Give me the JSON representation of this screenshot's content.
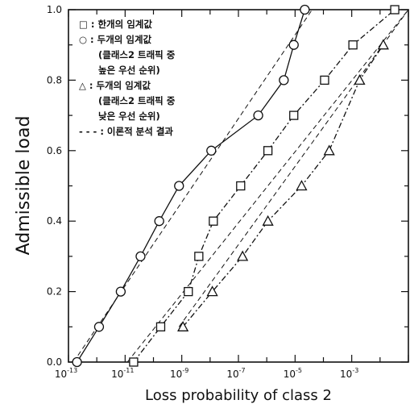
{
  "chart_data": {
    "type": "line",
    "title": "",
    "xlabel": "Loss probability of class 2",
    "ylabel": "Admissible load",
    "x_scale": "log",
    "xlim": [
      1e-13,
      0.1
    ],
    "ylim": [
      0.0,
      1.0
    ],
    "grid": false,
    "legend_placement": "top-left",
    "x_ticks": [
      {
        "value": 1e-13,
        "base": "10",
        "exp": "-13"
      },
      {
        "value": 1e-11,
        "base": "10",
        "exp": "-11"
      },
      {
        "value": 1e-09,
        "base": "10",
        "exp": "-9"
      },
      {
        "value": 1e-07,
        "base": "10",
        "exp": "-7"
      },
      {
        "value": 1e-05,
        "base": "10",
        "exp": "-5"
      },
      {
        "value": 0.001,
        "base": "10",
        "exp": "-3"
      }
    ],
    "y_ticks": [
      {
        "value": 0.0,
        "label": "0.0"
      },
      {
        "value": 0.2,
        "label": "0.2"
      },
      {
        "value": 0.4,
        "label": "0.4"
      },
      {
        "value": 0.6,
        "label": "0.6"
      },
      {
        "value": 0.8,
        "label": "0.8"
      },
      {
        "value": 1.0,
        "label": "1.0"
      }
    ],
    "series": [
      {
        "name": "한개의 임계값",
        "marker": "square",
        "line": "dash-dot",
        "x": [
          2e-11,
          1.8e-10,
          1.7e-09,
          4e-09,
          1.3e-08,
          1.2e-07,
          1.1e-06,
          9e-06,
          0.00011,
          0.0011,
          0.033
        ],
        "y": [
          0.0,
          0.1,
          0.2,
          0.3,
          0.4,
          0.5,
          0.6,
          0.7,
          0.8,
          0.9,
          1.0
        ]
      },
      {
        "name": "두개의 임계값 (클래스2 트래픽 중 높은 우선 순위)",
        "marker": "circle",
        "line": "solid",
        "x": [
          2e-13,
          1.2e-12,
          7e-12,
          3.5e-11,
          1.6e-10,
          8e-10,
          1.1e-08,
          5e-07,
          4e-06,
          9e-06,
          2.2e-05
        ],
        "y": [
          0.0,
          0.1,
          0.2,
          0.3,
          0.4,
          0.5,
          0.6,
          0.7,
          0.8,
          0.9,
          1.0
        ]
      },
      {
        "name": "두개의 임계값 (클래스2 트래픽 중 낮은 우선 순위)",
        "marker": "triangle",
        "line": "dash-dot",
        "x": [
          1.1e-09,
          1.2e-08,
          1.4e-07,
          1.1e-06,
          1.7e-05,
          0.00016,
          0.0019,
          0.013
        ],
        "y": [
          0.1,
          0.2,
          0.3,
          0.4,
          0.5,
          0.6,
          0.8,
          0.9
        ]
      },
      {
        "name": "이론적 분석 결과",
        "marker": "none",
        "line": "dashed",
        "x": [
          1.5e-13,
          4e-05
        ],
        "y": [
          0.0,
          1.0
        ]
      },
      {
        "name": "이론적 분석 결과",
        "marker": "none",
        "line": "dashed",
        "x": [
          1.2e-11,
          0.1
        ],
        "y": [
          0.0,
          1.0
        ]
      },
      {
        "name": "이론적 분석 결과",
        "marker": "none",
        "line": "dashed",
        "x": [
          8e-10,
          0.1
        ],
        "y": [
          0.1,
          1.0
        ]
      }
    ],
    "legend": [
      {
        "symbol": "square",
        "label": "□ : 한개의 임계값"
      },
      {
        "symbol": "circle",
        "label": "○ : 두개의 임계값"
      },
      {
        "symbol": "none",
        "label": "(클래스2 트래픽 중"
      },
      {
        "symbol": "none",
        "label": "높은 우선 순위)"
      },
      {
        "symbol": "triangle",
        "label": "△ : 두개의 임계값"
      },
      {
        "symbol": "none",
        "label": "(클래스2 트래픽 중"
      },
      {
        "symbol": "none",
        "label": "낮은 우선 순위)"
      },
      {
        "symbol": "dashed",
        "label": "- - - : 이론적 분석 결과"
      }
    ]
  }
}
